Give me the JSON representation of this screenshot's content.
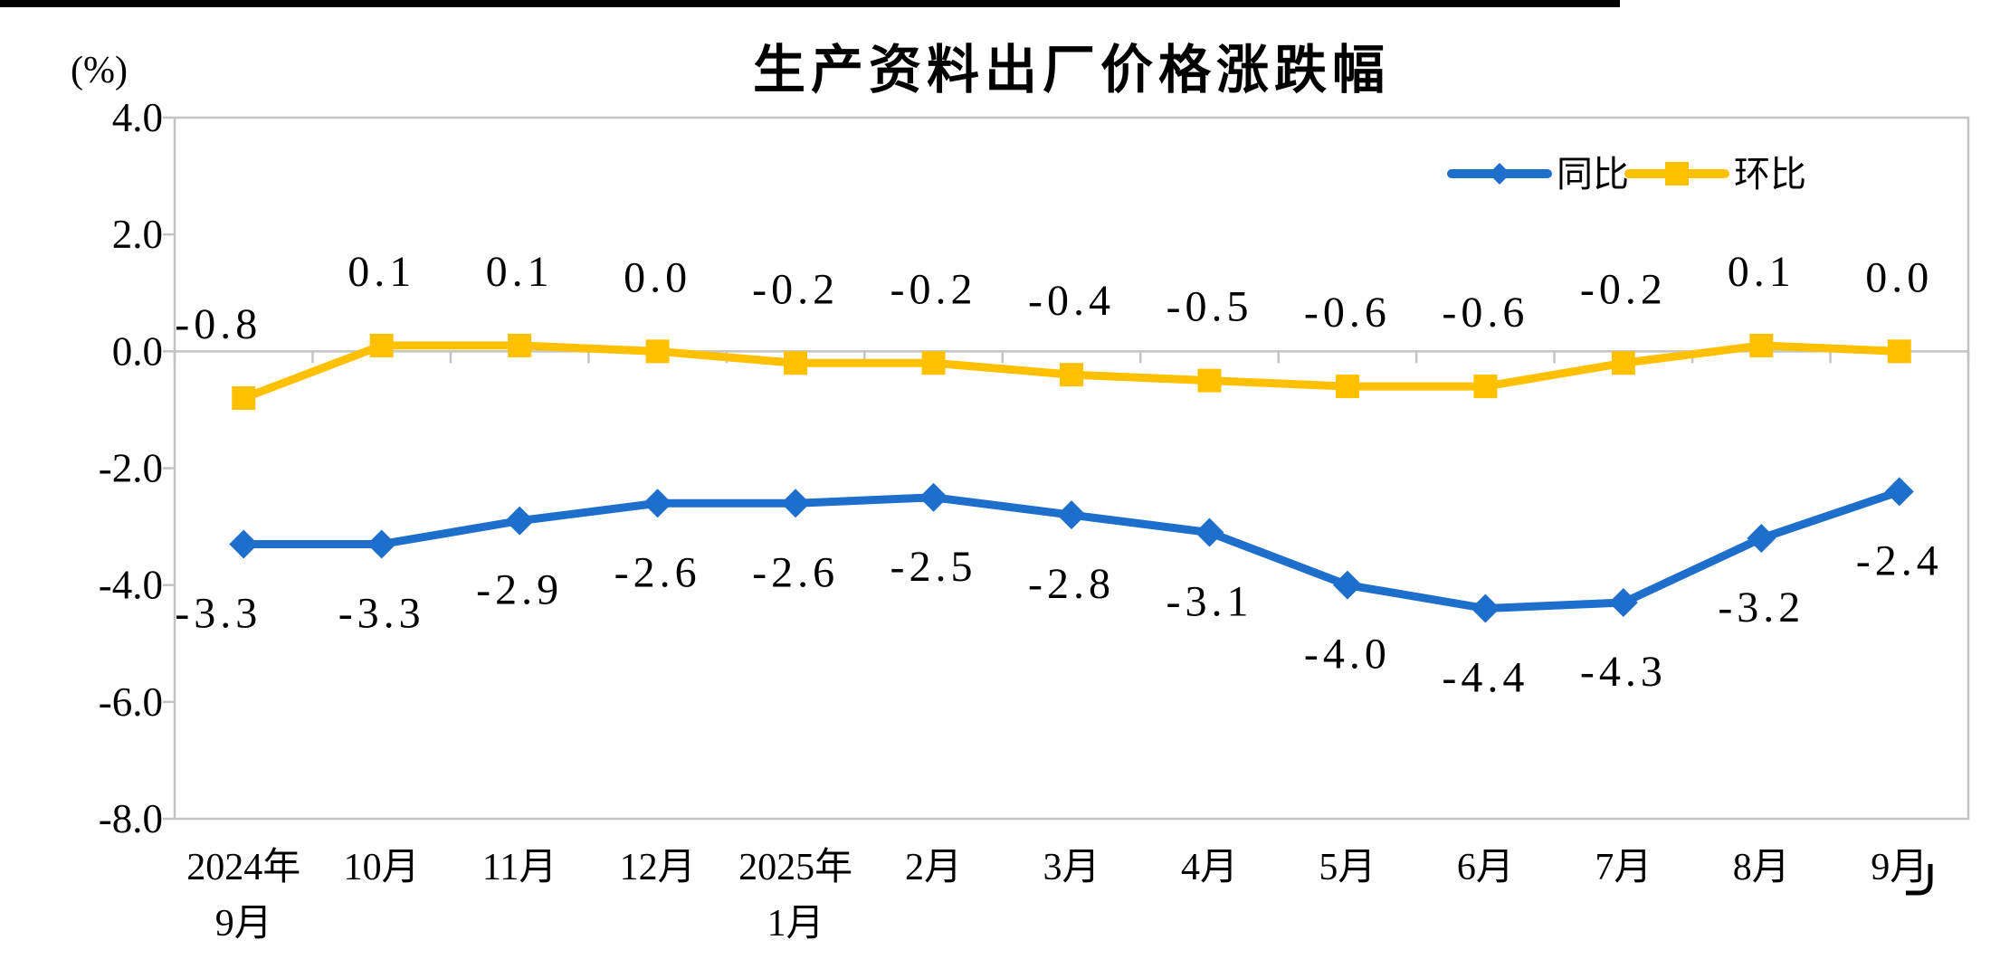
{
  "title": "生产资料出厂价格涨跌幅",
  "y_axis_unit": "(%)",
  "colors": {
    "tongbi_blue": "#1E6FCC",
    "huanbi_gold": "#FFC000",
    "axis_gray": "#C3C3C3",
    "text_black": "#000000"
  },
  "legend": {
    "items": [
      {
        "label": "同比",
        "marker": "diamond",
        "color": "#1E6FCC"
      },
      {
        "label": "环比",
        "marker": "square",
        "color": "#FFC000"
      }
    ]
  },
  "chart_data": {
    "type": "line",
    "title": "生产资料出厂价格涨跌幅",
    "ylabel": "(%)",
    "categories": [
      "2024年\n9月",
      "10月",
      "11月",
      "12月",
      "2025年\n1月",
      "2月",
      "3月",
      "4月",
      "5月",
      "6月",
      "7月",
      "8月",
      "9月"
    ],
    "series": [
      {
        "name": "同比",
        "color": "#1E6FCC",
        "marker": "diamond",
        "label_side": "below",
        "values": [
          -3.3,
          -3.3,
          -2.9,
          -2.6,
          -2.6,
          -2.5,
          -2.8,
          -3.1,
          -4.0,
          -4.4,
          -4.3,
          -3.2,
          -2.4
        ]
      },
      {
        "name": "环比",
        "color": "#FFC000",
        "marker": "square",
        "label_side": "above",
        "values": [
          -0.8,
          0.1,
          0.1,
          0.0,
          -0.2,
          -0.2,
          -0.4,
          -0.5,
          -0.6,
          -0.6,
          -0.2,
          0.1,
          0.0
        ]
      }
    ],
    "y_ticks": [
      4.0,
      2.0,
      0.0,
      -2.0,
      -4.0,
      -6.0,
      -8.0
    ],
    "y_tick_labels": [
      "4.0",
      "2.0",
      "0.0",
      "-2.0",
      "-4.0",
      "-6.0",
      "-8.0"
    ],
    "ylim": [
      -8.0,
      4.0
    ],
    "grid": false,
    "legend_position": "top-right",
    "data_labels_decimals": 1
  }
}
